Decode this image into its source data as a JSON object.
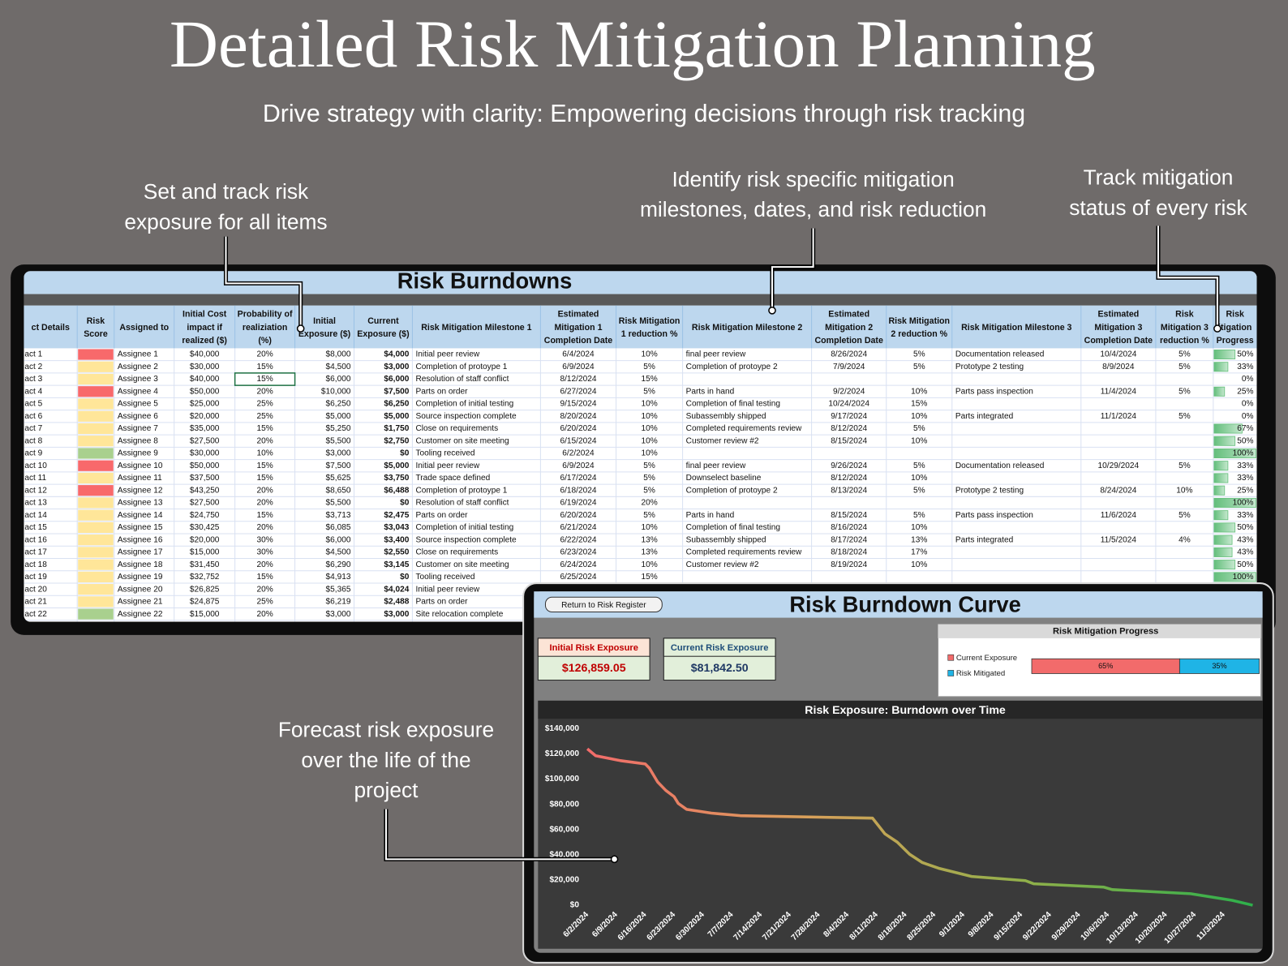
{
  "header": {
    "title": "Detailed Risk Mitigation Planning",
    "subtitle": "Drive strategy with clarity: Empowering decisions through risk tracking"
  },
  "callouts": [
    {
      "lines": [
        "Set and track risk",
        "exposure for all items"
      ]
    },
    {
      "lines": [
        "Identify risk specific mitigation",
        "milestones, dates, and risk reduction"
      ]
    },
    {
      "lines": [
        "Track mitigation",
        "status of every risk"
      ]
    },
    {
      "lines": [
        "Forecast risk exposure",
        "over the life of the",
        "project"
      ]
    }
  ],
  "table": {
    "title": "Risk Burndowns",
    "headers": [
      [
        "ct Details"
      ],
      [
        "Risk",
        "Score"
      ],
      [
        "Assigned to"
      ],
      [
        "Initial Cost",
        "impact if",
        "realized ($)"
      ],
      [
        "Probability of",
        "realiziation",
        "(%)"
      ],
      [
        "Initial",
        "Exposure ($)"
      ],
      [
        "Current",
        "Exposure ($)"
      ],
      [
        "Risk Mitigation Milestone 1"
      ],
      [
        "Estimated",
        "Mitigation 1",
        "Completion Date"
      ],
      [
        "Risk Mitigation",
        "1 reduction %"
      ],
      [
        "Risk Mitigation Milestone 2"
      ],
      [
        "Estimated",
        "Mitigation 2",
        "Completion Date"
      ],
      [
        "Risk Mitigation",
        "2 reduction %"
      ],
      [
        "Risk Mitigation Milestone 3"
      ],
      [
        "Estimated",
        "Mitigation 3",
        "Completion Date"
      ],
      [
        "Risk",
        "Mitigation 3",
        "reduction %"
      ],
      [
        "Risk",
        "itigation",
        "Progress"
      ]
    ],
    "score_colors": [
      "#f8696b",
      "#ffe699",
      "#ffe699",
      "#f8696b",
      "#ffe699",
      "#ffe699",
      "#ffe699",
      "#ffe699",
      "#a9d08e",
      "#f8696b",
      "#ffe699",
      "#f8696b",
      "#ffe699",
      "#ffe699",
      "#ffe699",
      "#ffe699",
      "#ffe699",
      "#ffe699",
      "#ffe699",
      "#ffe699",
      "#ffe699",
      "#a9d08e"
    ],
    "rows": [
      [
        "act 1",
        "Assignee 1",
        "$40,000",
        "20%",
        "$8,000",
        "$4,000",
        "Initial peer review",
        "6/4/2024",
        "10%",
        "final peer review",
        "8/26/2024",
        "5%",
        "Documentation released",
        "10/4/2024",
        "5%",
        "50%"
      ],
      [
        "act 2",
        "Assignee 2",
        "$30,000",
        "15%",
        "$4,500",
        "$3,000",
        "Completion of protoype 1",
        "6/9/2024",
        "5%",
        "Completion of protoype 2",
        "7/9/2024",
        "5%",
        "Prototype 2 testing",
        "8/9/2024",
        "5%",
        "33%"
      ],
      [
        "act 3",
        "Assignee 3",
        "$40,000",
        "15%",
        "$6,000",
        "$6,000",
        "Resolution of staff conflict",
        "8/12/2024",
        "15%",
        null,
        null,
        null,
        null,
        null,
        null,
        "0%"
      ],
      [
        "act 4",
        "Assignee 4",
        "$50,000",
        "20%",
        "$10,000",
        "$7,500",
        "Parts on order",
        "6/27/2024",
        "5%",
        "Parts in hand",
        "9/2/2024",
        "10%",
        "Parts pass inspection",
        "11/4/2024",
        "5%",
        "25%"
      ],
      [
        "act 5",
        "Assignee 5",
        "$25,000",
        "25%",
        "$6,250",
        "$6,250",
        "Completion of initial testing",
        "9/15/2024",
        "10%",
        "Completion of final testing",
        "10/24/2024",
        "15%",
        null,
        null,
        null,
        "0%"
      ],
      [
        "act 6",
        "Assignee 6",
        "$20,000",
        "25%",
        "$5,000",
        "$5,000",
        "Source inspection complete",
        "8/20/2024",
        "10%",
        "Subassembly shipped",
        "9/17/2024",
        "10%",
        "Parts integrated",
        "11/1/2024",
        "5%",
        "0%"
      ],
      [
        "act 7",
        "Assignee 7",
        "$35,000",
        "15%",
        "$5,250",
        "$1,750",
        "Close on requirements",
        "6/20/2024",
        "10%",
        "Completed requirements review",
        "8/12/2024",
        "5%",
        null,
        null,
        null,
        "67%"
      ],
      [
        "act 8",
        "Assignee 8",
        "$27,500",
        "20%",
        "$5,500",
        "$2,750",
        "Customer on site meeting",
        "6/15/2024",
        "10%",
        "Customer review #2",
        "8/15/2024",
        "10%",
        null,
        null,
        null,
        "50%"
      ],
      [
        "act 9",
        "Assignee 9",
        "$30,000",
        "10%",
        "$3,000",
        "$0",
        "Tooling received",
        "6/2/2024",
        "10%",
        null,
        null,
        null,
        null,
        null,
        null,
        "100%"
      ],
      [
        "act 10",
        "Assignee 10",
        "$50,000",
        "15%",
        "$7,500",
        "$5,000",
        "Initial peer review",
        "6/9/2024",
        "5%",
        "final peer review",
        "9/26/2024",
        "5%",
        "Documentation released",
        "10/29/2024",
        "5%",
        "33%"
      ],
      [
        "act 11",
        "Assignee 11",
        "$37,500",
        "15%",
        "$5,625",
        "$3,750",
        "Trade space defined",
        "6/17/2024",
        "5%",
        "Downselect baseline",
        "8/12/2024",
        "10%",
        null,
        null,
        null,
        "33%"
      ],
      [
        "act 12",
        "Assignee 12",
        "$43,250",
        "20%",
        "$8,650",
        "$6,488",
        "Completion of protoype 1",
        "6/18/2024",
        "5%",
        "Completion of protoype 2",
        "8/13/2024",
        "5%",
        "Prototype 2 testing",
        "8/24/2024",
        "10%",
        "25%"
      ],
      [
        "act 13",
        "Assignee 13",
        "$27,500",
        "20%",
        "$5,500",
        "$0",
        "Resolution of staff conflict",
        "6/19/2024",
        "20%",
        null,
        null,
        null,
        null,
        null,
        null,
        "100%"
      ],
      [
        "act 14",
        "Assignee 14",
        "$24,750",
        "15%",
        "$3,713",
        "$2,475",
        "Parts on order",
        "6/20/2024",
        "5%",
        "Parts in hand",
        "8/15/2024",
        "5%",
        "Parts pass inspection",
        "11/6/2024",
        "5%",
        "33%"
      ],
      [
        "act 15",
        "Assignee 15",
        "$30,425",
        "20%",
        "$6,085",
        "$3,043",
        "Completion of initial testing",
        "6/21/2024",
        "10%",
        "Completion of final testing",
        "8/16/2024",
        "10%",
        null,
        null,
        null,
        "50%"
      ],
      [
        "act 16",
        "Assignee 16",
        "$20,000",
        "30%",
        "$6,000",
        "$3,400",
        "Source inspection complete",
        "6/22/2024",
        "13%",
        "Subassembly shipped",
        "8/17/2024",
        "13%",
        "Parts integrated",
        "11/5/2024",
        "4%",
        "43%"
      ],
      [
        "act 17",
        "Assignee 17",
        "$15,000",
        "30%",
        "$4,500",
        "$2,550",
        "Close on requirements",
        "6/23/2024",
        "13%",
        "Completed requirements review",
        "8/18/2024",
        "17%",
        null,
        null,
        null,
        "43%"
      ],
      [
        "act 18",
        "Assignee 18",
        "$31,450",
        "20%",
        "$6,290",
        "$3,145",
        "Customer on site meeting",
        "6/24/2024",
        "10%",
        "Customer review #2",
        "8/19/2024",
        "10%",
        null,
        null,
        null,
        "50%"
      ],
      [
        "act 19",
        "Assignee 19",
        "$32,752",
        "15%",
        "$4,913",
        "$0",
        "Tooling received",
        "6/25/2024",
        "15%",
        null,
        null,
        null,
        null,
        null,
        null,
        "100%"
      ],
      [
        "act 20",
        "Assignee 20",
        "$26,825",
        "20%",
        "$5,365",
        "$4,024",
        "Initial peer review"
      ],
      [
        "act 21",
        "Assignee 21",
        "$24,875",
        "25%",
        "$6,219",
        "$2,488",
        "Parts on order"
      ],
      [
        "act 22",
        "Assignee 22",
        "$15,000",
        "20%",
        "$3,000",
        "$3,000",
        "Site relocation complete"
      ]
    ]
  },
  "dashboard": {
    "button": "Return to Risk Register",
    "title": "Risk Burndown Curve",
    "stats": [
      {
        "label": "Initial Risk Exposure",
        "value": "$126,859.05"
      },
      {
        "label": "Current Risk Exposure",
        "value": "$81,842.50"
      }
    ]
  },
  "chart_data": [
    {
      "type": "line",
      "title": "Risk Exposure: Burndown over Time",
      "x": [
        "6/2/2024",
        "6/4/2024",
        "6/10/2024",
        "6/16/2024",
        "6/17/2024",
        "6/19/2024",
        "6/21/2024",
        "6/23/2024",
        "6/24/2024",
        "6/26/2024",
        "7/2/2024",
        "7/9/2024",
        "8/10/2024",
        "8/13/2024",
        "8/16/2024",
        "8/19/2024",
        "8/22/2024",
        "8/26/2024",
        "9/3/2024",
        "9/16/2024",
        "9/18/2024",
        "10/5/2024",
        "10/7/2024",
        "10/26/2024",
        "11/5/2024",
        "11/10/2024"
      ],
      "series": [
        {
          "colors": [
            "#f26b6b",
            "#d9a05a",
            "#8fb04a",
            "#2db04b"
          ],
          "values": [
            124000,
            118500,
            114600,
            112000,
            108700,
            97700,
            91000,
            86000,
            80700,
            76000,
            73000,
            71000,
            69000,
            56600,
            50000,
            40400,
            33900,
            29300,
            22800,
            19500,
            17000,
            14300,
            12400,
            9100,
            3900,
            0
          ]
        }
      ],
      "xlim": [
        "6/1/2024",
        "11/10/2024"
      ],
      "xticks": [
        "6/2/2024",
        "6/9/2024",
        "6/16/2024",
        "6/23/2024",
        "6/30/2024",
        "7/7/2024",
        "7/14/2024",
        "7/21/2024",
        "7/28/2024",
        "8/4/2024",
        "8/11/2024",
        "8/18/2024",
        "8/25/2024",
        "9/1/2024",
        "9/8/2024",
        "9/15/2024",
        "9/22/2024",
        "9/29/2024",
        "10/6/2024",
        "10/13/2024",
        "10/20/2024",
        "10/27/2024",
        "11/3/2024"
      ],
      "ylim": [
        0,
        140000
      ],
      "yticks": [
        {
          "value": 0,
          "label": "$0"
        },
        {
          "value": 20000,
          "label": "$20,000"
        },
        {
          "value": 40000,
          "label": "$40,000"
        },
        {
          "value": 60000,
          "label": "$60,000"
        },
        {
          "value": 80000,
          "label": "$80,000"
        },
        {
          "value": 100000,
          "label": "$100,000"
        },
        {
          "value": 120000,
          "label": "$120,000"
        },
        {
          "value": 140000,
          "label": "$140,000"
        }
      ],
      "grid": false
    },
    {
      "type": "stacked-bar",
      "title": "Risk Mitigation Progress",
      "xlim": [
        0,
        100
      ],
      "series": [
        {
          "name": "Current Exposure",
          "color": "#f26b6b",
          "values": [
            65
          ],
          "value_labels": [
            "65%"
          ]
        },
        {
          "name": "Risk Mitigated",
          "color": "#1fb4e6",
          "values": [
            35
          ],
          "value_labels": [
            "35%"
          ]
        }
      ]
    }
  ]
}
